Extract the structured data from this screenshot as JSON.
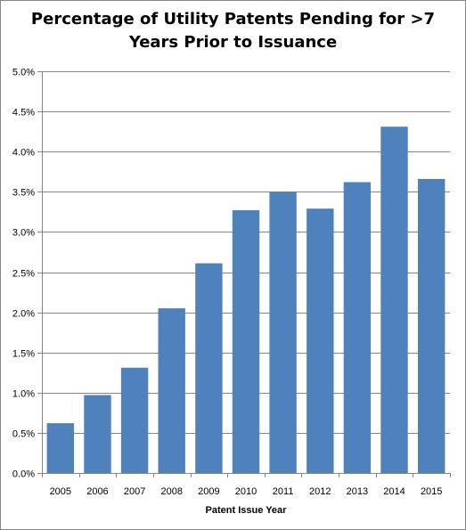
{
  "chart_data": {
    "type": "bar",
    "title_lines": [
      "Percentage of Utility Patents Pending for >7",
      "Years Prior to Issuance"
    ],
    "xlabel": "Patent Issue Year",
    "ylabel": "",
    "categories": [
      "2005",
      "2006",
      "2007",
      "2008",
      "2009",
      "2010",
      "2011",
      "2012",
      "2013",
      "2014",
      "2015"
    ],
    "values": [
      0.62,
      0.97,
      1.31,
      2.05,
      2.61,
      3.27,
      3.5,
      3.29,
      3.62,
      4.31,
      3.66
    ],
    "unit": "%",
    "ylim": [
      0,
      5
    ],
    "yticks": [
      "0.0%",
      "0.5%",
      "1.0%",
      "1.5%",
      "2.0%",
      "2.5%",
      "3.0%",
      "3.5%",
      "4.0%",
      "4.5%",
      "5.0%"
    ],
    "grid": true,
    "legend": "none",
    "bar_color": "#4F81BD"
  }
}
